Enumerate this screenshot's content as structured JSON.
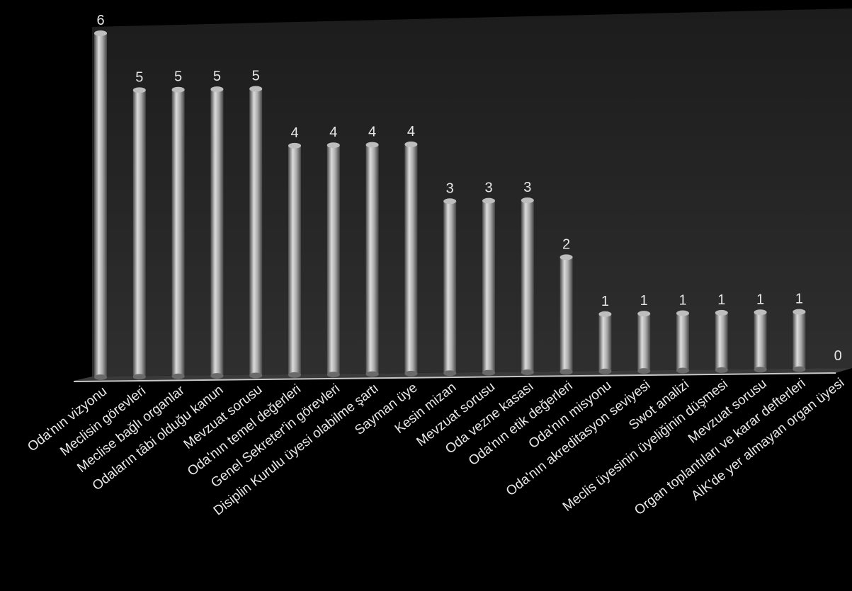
{
  "chart_data": {
    "type": "bar",
    "categories": [
      "Oda'nın vizyonu",
      "Meclisin görevleri",
      "Meclise bağlı organlar",
      "Odaların tâbi olduğu kanun",
      "Mevzuat sorusu",
      "Oda'nın temel değerleri",
      "Genel Sekreter'in görevleri",
      "Disiplin Kurulu üyesi olabilme şartı",
      "Sayman üye",
      "Kesin mizan",
      "Mevzuat sorusu",
      "Oda vezne kasası",
      "Oda'nın etik değerleri",
      "Oda'nın misyonu",
      "Oda'nın akreditasyon seviyesi",
      "Swot analizi",
      "Meclis üyesinin üyeliğinin düşmesi",
      "Mevzuat sorusu",
      "Organ toplantıları ve karar defterleri",
      "AİK'de yer almayan organ üyesi"
    ],
    "values": [
      6,
      5,
      5,
      5,
      5,
      4,
      4,
      4,
      4,
      3,
      3,
      3,
      2,
      1,
      1,
      1,
      1,
      1,
      1,
      0
    ],
    "data_labels": [
      "6",
      "5",
      "5",
      "5",
      "5",
      "4",
      "4",
      "4",
      "4",
      "3",
      "3",
      "3",
      "2",
      "1",
      "1",
      "1",
      "1",
      "1",
      "1",
      "0"
    ],
    "ylim": [
      0,
      6
    ],
    "grid": false,
    "legend": "none",
    "title": "",
    "xlabel": "",
    "ylabel": "",
    "colors": {
      "background": "#000000",
      "plot_area_top": "#1e1e1e",
      "plot_area_bottom": "#2e2e2e",
      "bar_light": "#dcdcdc",
      "bar_mid": "#9a9a9a",
      "bar_dark": "#4a4a4a",
      "axis": "#c8c8c8",
      "text": "#e6e6e6"
    }
  }
}
